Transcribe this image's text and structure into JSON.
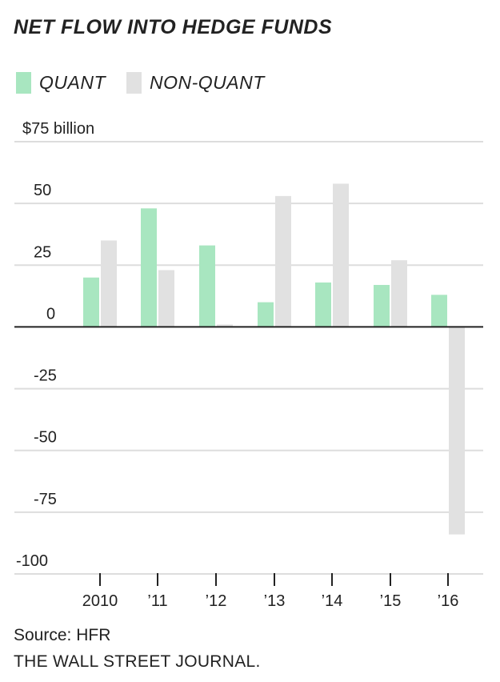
{
  "title": "NET FLOW INTO HEDGE FUNDS",
  "legend": {
    "quant_label": "QUANT",
    "nonquant_label": "NON-QUANT"
  },
  "colors": {
    "quant": "#a8e6c0",
    "nonquant": "#e1e1e1",
    "grid": "#dddddd",
    "zero_line": "#222222"
  },
  "source": "Source: HFR",
  "publisher": "THE WALL STREET JOURNAL.",
  "chart_data": {
    "type": "bar",
    "title": "NET FLOW INTO HEDGE FUNDS",
    "xlabel": "",
    "ylabel": "$ billion",
    "categories": [
      "2010",
      "’11",
      "’12",
      "’13",
      "’14",
      "’15",
      "’16"
    ],
    "series": [
      {
        "name": "QUANT",
        "values": [
          20,
          48,
          33,
          10,
          18,
          17,
          13
        ]
      },
      {
        "name": "NON-QUANT",
        "values": [
          35,
          23,
          1,
          53,
          58,
          27,
          -84
        ]
      }
    ],
    "ylim": [
      -100,
      75
    ],
    "yticks": [
      75,
      50,
      25,
      0,
      -25,
      -50,
      -75,
      -100
    ],
    "ytick_labels": [
      "$75 billion",
      "50",
      "25",
      "0",
      "-25",
      "-50",
      "-75",
      "-100"
    ],
    "grid": true,
    "legend_position": "top-left"
  }
}
